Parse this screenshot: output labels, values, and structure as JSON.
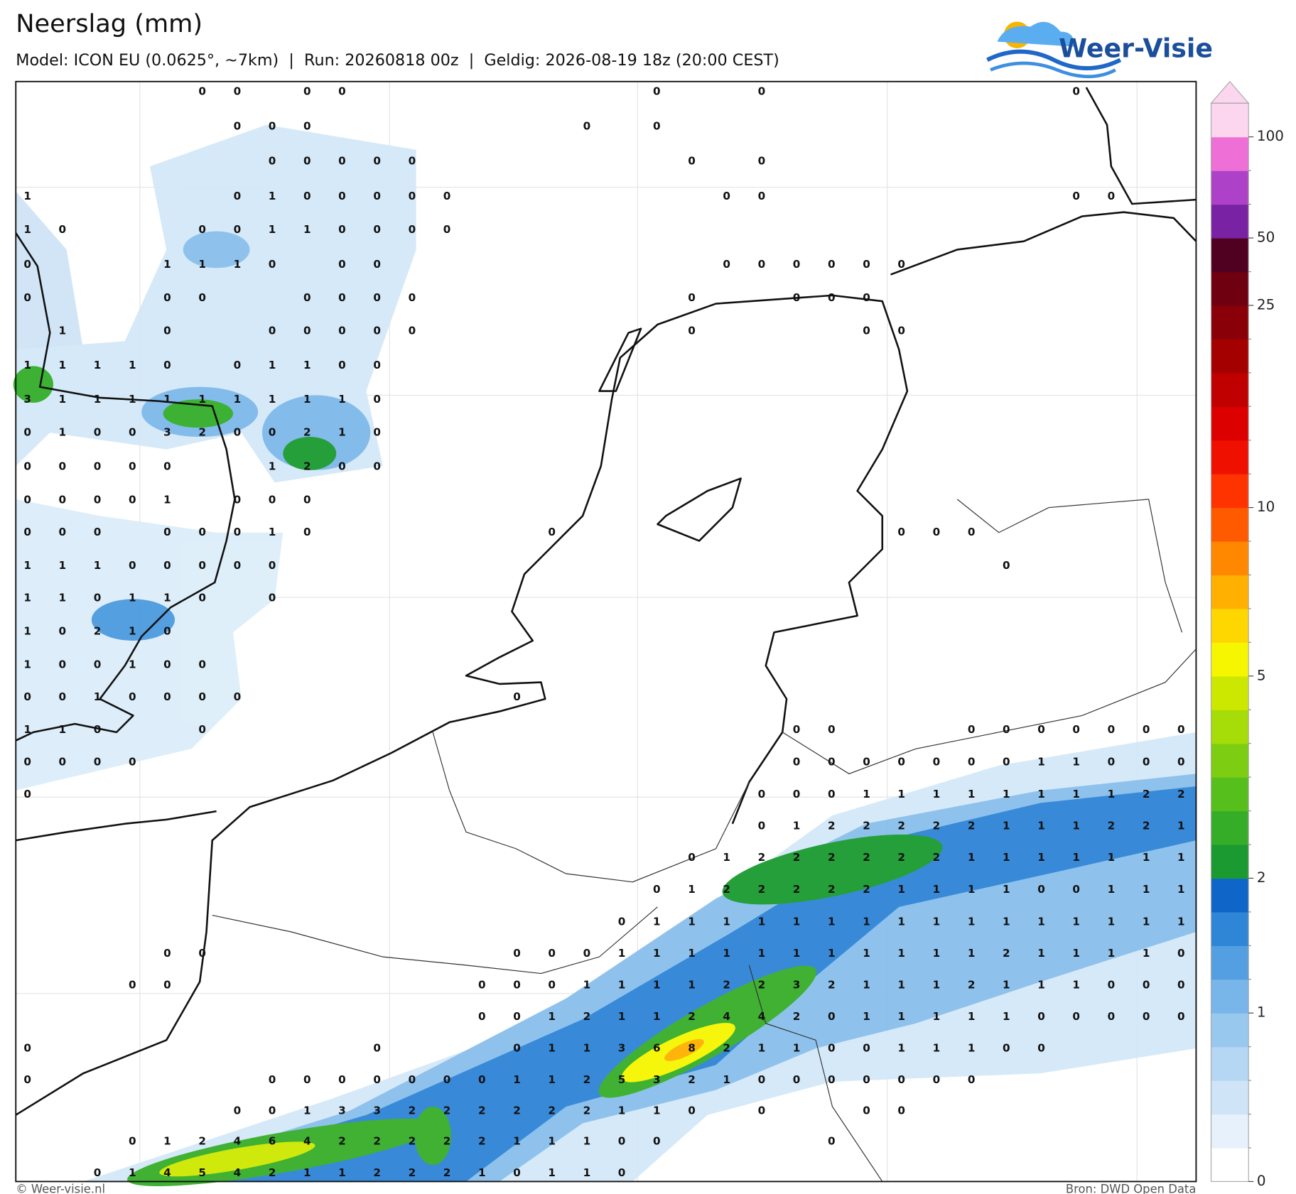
{
  "header": {
    "title": "Neerslag (mm)",
    "subtitle": "Model: ICON EU (0.0625°, ~7km)  |  Run: 20260818 00z  |  Geldig: 2026-08-19 18z (20:00 CEST)"
  },
  "logo": {
    "text": "Weer-Visie"
  },
  "map": {
    "grid": [
      [
        null,
        null,
        null,
        null,
        null,
        0,
        0,
        null,
        0,
        0,
        null,
        null,
        null,
        null,
        null,
        null,
        null,
        null,
        0,
        null,
        null,
        0,
        null,
        null,
        null,
        null,
        null,
        null,
        null,
        null,
        0,
        null,
        null,
        null
      ],
      [
        null,
        null,
        null,
        null,
        null,
        null,
        0,
        0,
        0,
        null,
        null,
        null,
        null,
        null,
        null,
        null,
        0,
        null,
        0,
        null,
        null,
        null,
        null,
        null,
        null,
        null,
        null,
        null,
        null,
        null,
        null,
        null,
        null,
        null
      ],
      [
        null,
        null,
        null,
        null,
        null,
        null,
        null,
        0,
        0,
        0,
        0,
        0,
        null,
        null,
        null,
        null,
        null,
        null,
        null,
        0,
        null,
        0,
        null,
        null,
        null,
        null,
        null,
        null,
        null,
        null,
        null,
        null,
        null,
        null
      ],
      [
        1,
        null,
        null,
        null,
        null,
        null,
        0,
        1,
        0,
        0,
        0,
        0,
        0,
        null,
        null,
        null,
        null,
        null,
        null,
        null,
        0,
        0,
        null,
        null,
        null,
        null,
        null,
        null,
        null,
        null,
        0,
        0,
        null,
        null
      ],
      [
        1,
        0,
        null,
        null,
        null,
        0,
        0,
        1,
        1,
        0,
        0,
        0,
        0,
        null,
        null,
        null,
        null,
        null,
        null,
        null,
        null,
        null,
        null,
        null,
        null,
        null,
        null,
        null,
        null,
        null,
        null,
        null,
        null,
        null
      ],
      [
        0,
        null,
        null,
        null,
        1,
        1,
        1,
        0,
        null,
        0,
        0,
        null,
        null,
        null,
        null,
        null,
        null,
        null,
        null,
        null,
        0,
        0,
        0,
        0,
        0,
        0,
        null,
        null,
        null,
        null,
        null,
        null,
        null,
        null
      ],
      [
        0,
        null,
        null,
        null,
        0,
        0,
        null,
        null,
        0,
        0,
        0,
        0,
        null,
        null,
        null,
        null,
        null,
        null,
        null,
        0,
        null,
        null,
        0,
        0,
        0,
        null,
        null,
        null,
        null,
        null,
        null,
        null,
        null,
        null
      ],
      [
        null,
        1,
        null,
        null,
        0,
        null,
        null,
        0,
        0,
        0,
        0,
        0,
        null,
        null,
        null,
        null,
        null,
        null,
        null,
        0,
        null,
        null,
        null,
        null,
        0,
        0,
        null,
        null,
        null,
        null,
        null,
        null,
        null,
        null
      ],
      [
        1,
        1,
        1,
        1,
        0,
        null,
        0,
        1,
        1,
        0,
        0,
        null,
        null,
        null,
        null,
        null,
        null,
        null,
        null,
        null,
        null,
        null,
        null,
        null,
        null,
        null,
        null,
        null,
        null,
        null,
        null,
        null,
        null,
        null
      ],
      [
        3,
        1,
        1,
        1,
        1,
        1,
        1,
        1,
        1,
        1,
        0,
        null,
        null,
        null,
        null,
        null,
        null,
        null,
        null,
        null,
        null,
        null,
        null,
        null,
        null,
        null,
        null,
        null,
        null,
        null,
        null,
        null,
        null,
        null
      ],
      [
        0,
        1,
        0,
        0,
        3,
        2,
        0,
        0,
        2,
        1,
        0,
        null,
        null,
        null,
        null,
        null,
        null,
        null,
        null,
        null,
        null,
        null,
        null,
        null,
        null,
        null,
        null,
        null,
        null,
        null,
        null,
        null,
        null,
        null
      ],
      [
        0,
        0,
        0,
        0,
        0,
        null,
        null,
        1,
        2,
        0,
        0,
        null,
        null,
        null,
        null,
        null,
        null,
        null,
        null,
        null,
        null,
        null,
        null,
        null,
        null,
        null,
        null,
        null,
        null,
        null,
        null,
        null,
        null,
        null
      ],
      [
        0,
        0,
        0,
        0,
        1,
        null,
        0,
        0,
        0,
        null,
        null,
        null,
        null,
        null,
        null,
        null,
        null,
        null,
        null,
        null,
        null,
        null,
        null,
        null,
        null,
        null,
        null,
        null,
        null,
        null,
        null,
        null,
        null,
        null
      ],
      [
        0,
        0,
        0,
        null,
        0,
        0,
        0,
        1,
        0,
        null,
        null,
        null,
        null,
        null,
        null,
        0,
        null,
        null,
        null,
        null,
        null,
        null,
        null,
        null,
        null,
        0,
        0,
        0,
        null,
        null,
        null,
        null,
        null,
        null
      ],
      [
        1,
        1,
        1,
        0,
        0,
        0,
        0,
        0,
        null,
        null,
        null,
        null,
        null,
        null,
        null,
        null,
        null,
        null,
        null,
        null,
        null,
        null,
        null,
        null,
        null,
        null,
        null,
        null,
        0,
        null,
        null,
        null,
        null,
        null
      ],
      [
        1,
        1,
        0,
        1,
        1,
        0,
        null,
        0,
        null,
        null,
        null,
        null,
        null,
        null,
        null,
        null,
        null,
        null,
        null,
        null,
        null,
        null,
        null,
        null,
        null,
        null,
        null,
        null,
        null,
        null,
        null,
        null,
        null,
        null
      ],
      [
        1,
        0,
        2,
        1,
        0,
        null,
        null,
        null,
        null,
        null,
        null,
        null,
        null,
        null,
        null,
        null,
        null,
        null,
        null,
        null,
        null,
        null,
        null,
        null,
        null,
        null,
        null,
        null,
        null,
        null,
        null,
        null,
        null,
        null
      ],
      [
        1,
        0,
        0,
        1,
        0,
        0,
        null,
        null,
        null,
        null,
        null,
        null,
        null,
        null,
        null,
        null,
        null,
        null,
        null,
        null,
        null,
        null,
        null,
        null,
        null,
        null,
        null,
        null,
        null,
        null,
        null,
        null,
        null,
        null
      ],
      [
        0,
        0,
        1,
        0,
        0,
        0,
        0,
        null,
        null,
        null,
        null,
        null,
        null,
        null,
        0,
        null,
        null,
        null,
        null,
        null,
        null,
        null,
        null,
        null,
        null,
        null,
        null,
        null,
        null,
        null,
        null,
        null,
        null,
        null
      ],
      [
        1,
        1,
        0,
        null,
        null,
        0,
        null,
        null,
        null,
        null,
        null,
        null,
        null,
        null,
        null,
        null,
        null,
        null,
        null,
        null,
        null,
        null,
        0,
        0,
        null,
        null,
        null,
        0,
        0,
        0,
        0,
        0,
        0,
        0
      ],
      [
        0,
        0,
        0,
        0,
        null,
        null,
        null,
        null,
        null,
        null,
        null,
        null,
        null,
        null,
        null,
        null,
        null,
        null,
        null,
        null,
        null,
        null,
        0,
        0,
        0,
        0,
        0,
        0,
        0,
        1,
        1,
        0,
        0,
        0
      ],
      [
        0,
        null,
        null,
        null,
        null,
        null,
        null,
        null,
        null,
        null,
        null,
        null,
        null,
        null,
        null,
        null,
        null,
        null,
        null,
        null,
        null,
        0,
        0,
        0,
        1,
        1,
        1,
        1,
        1,
        1,
        1,
        1,
        2,
        2
      ],
      [
        null,
        null,
        null,
        null,
        null,
        null,
        null,
        null,
        null,
        null,
        null,
        null,
        null,
        null,
        null,
        null,
        null,
        null,
        null,
        null,
        null,
        0,
        1,
        2,
        2,
        2,
        2,
        2,
        1,
        1,
        1,
        2,
        2,
        1
      ],
      [
        null,
        null,
        null,
        null,
        null,
        null,
        null,
        null,
        null,
        null,
        null,
        null,
        null,
        null,
        null,
        null,
        null,
        null,
        null,
        0,
        1,
        2,
        2,
        2,
        2,
        2,
        2,
        1,
        1,
        1,
        1,
        1,
        1,
        1
      ],
      [
        null,
        null,
        null,
        null,
        null,
        null,
        null,
        null,
        null,
        null,
        null,
        null,
        null,
        null,
        null,
        null,
        null,
        null,
        0,
        1,
        2,
        2,
        2,
        2,
        2,
        1,
        1,
        1,
        1,
        0,
        0,
        1,
        1,
        1
      ],
      [
        null,
        null,
        null,
        null,
        null,
        null,
        null,
        null,
        null,
        null,
        null,
        null,
        null,
        null,
        null,
        null,
        null,
        0,
        1,
        1,
        1,
        1,
        1,
        1,
        1,
        1,
        1,
        1,
        1,
        1,
        1,
        1,
        1,
        1
      ],
      [
        null,
        null,
        null,
        null,
        0,
        0,
        null,
        null,
        null,
        null,
        null,
        null,
        null,
        null,
        0,
        0,
        0,
        1,
        1,
        1,
        1,
        1,
        1,
        1,
        1,
        1,
        1,
        1,
        2,
        1,
        1,
        1,
        1,
        0
      ],
      [
        null,
        null,
        null,
        0,
        0,
        null,
        null,
        null,
        null,
        null,
        null,
        null,
        null,
        0,
        0,
        0,
        1,
        1,
        1,
        1,
        2,
        2,
        3,
        2,
        1,
        1,
        1,
        2,
        1,
        1,
        1,
        0,
        0,
        0
      ],
      [
        null,
        null,
        null,
        null,
        null,
        null,
        null,
        null,
        null,
        null,
        null,
        null,
        null,
        0,
        0,
        1,
        2,
        1,
        1,
        2,
        4,
        4,
        2,
        0,
        1,
        1,
        1,
        1,
        1,
        0,
        0,
        0,
        0,
        0
      ],
      [
        0,
        null,
        null,
        null,
        null,
        null,
        null,
        null,
        null,
        null,
        0,
        null,
        null,
        null,
        0,
        1,
        1,
        3,
        6,
        8,
        2,
        1,
        1,
        0,
        0,
        1,
        1,
        1,
        0,
        0,
        null,
        null,
        null,
        null
      ],
      [
        0,
        null,
        null,
        null,
        null,
        null,
        null,
        0,
        0,
        0,
        0,
        0,
        0,
        0,
        1,
        1,
        2,
        5,
        3,
        2,
        1,
        0,
        0,
        0,
        0,
        0,
        0,
        0,
        null,
        null,
        null,
        null,
        null,
        null
      ],
      [
        null,
        null,
        null,
        null,
        null,
        null,
        0,
        0,
        1,
        3,
        3,
        2,
        2,
        2,
        2,
        2,
        2,
        1,
        1,
        0,
        null,
        0,
        null,
        null,
        0,
        0,
        null,
        null,
        null,
        null,
        null,
        null,
        null,
        null
      ],
      [
        null,
        null,
        null,
        0,
        1,
        2,
        4,
        6,
        4,
        2,
        2,
        2,
        2,
        2,
        1,
        1,
        1,
        0,
        0,
        null,
        null,
        null,
        null,
        0,
        null,
        null,
        null,
        null,
        null,
        null,
        null,
        null,
        null,
        null
      ],
      [
        null,
        null,
        0,
        1,
        4,
        5,
        4,
        2,
        1,
        1,
        2,
        2,
        2,
        1,
        0,
        1,
        1,
        0,
        null,
        null,
        null,
        null,
        null,
        null,
        null,
        null,
        null,
        null,
        null,
        null,
        null,
        null,
        null,
        null
      ]
    ]
  },
  "colorbar": {
    "ticks": [
      0,
      1,
      2,
      5,
      10,
      25,
      50,
      100
    ],
    "colors": [
      "#ffffff",
      "#e6f1fb",
      "#cfe4f7",
      "#b5d7f3",
      "#99c8ef",
      "#78b5e9",
      "#549fe1",
      "#2f86d7",
      "#0f66c8",
      "#1a9a30",
      "#36ad28",
      "#56bf1c",
      "#7dce12",
      "#a6dc08",
      "#cde800",
      "#f6f600",
      "#ffd700",
      "#ffb000",
      "#ff8800",
      "#ff5a00",
      "#ff3300",
      "#f01000",
      "#dc0000",
      "#c00000",
      "#a50000",
      "#8a0008",
      "#6e0010",
      "#500020",
      "#7a22a4",
      "#ad42c8",
      "#ee70d6",
      "#fcd6ef"
    ]
  },
  "footer": {
    "left": "© Weer-visie.nl",
    "right": "Bron: DWD Open Data"
  }
}
